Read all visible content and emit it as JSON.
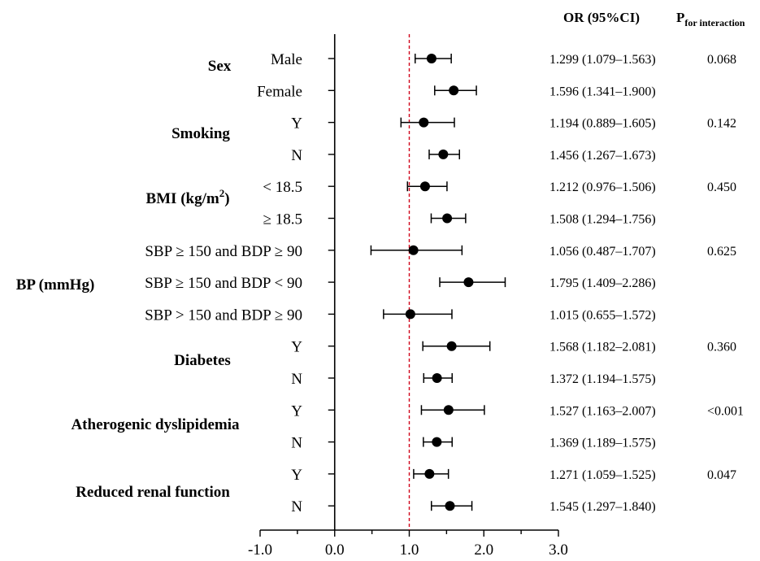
{
  "header": {
    "or_title": "OR (95%CI)",
    "p_title_main": "P",
    "p_title_sub": "for interaction"
  },
  "groups": [
    {
      "label": "Sex"
    },
    {
      "label": "Smoking"
    },
    {
      "label": "BMI (kg/m",
      "sup": "2",
      "suffix": ")"
    },
    {
      "label": "BP (mmHg)"
    },
    {
      "label": "Diabetes"
    },
    {
      "label": "Atherogenic dyslipidemia"
    },
    {
      "label": "Reduced renal function"
    }
  ],
  "chart_data": {
    "type": "scatter",
    "subtype": "forest_plot",
    "xlim": [
      -1.0,
      3.0
    ],
    "x_ticks": [
      "-1.0",
      "0.0",
      "1.0",
      "2.0",
      "3.0"
    ],
    "reference_line": {
      "x": 1.0,
      "style": "dashed",
      "color": "#d0021b"
    },
    "rows": [
      {
        "group": "Sex",
        "label": "Male",
        "or": 1.299,
        "lo": 1.079,
        "hi": 1.563,
        "ci_text": "1.299 (1.079–1.563)",
        "p": "0.068"
      },
      {
        "group": "Sex",
        "label": "Female",
        "or": 1.596,
        "lo": 1.341,
        "hi": 1.9,
        "ci_text": "1.596 (1.341–1.900)",
        "p": ""
      },
      {
        "group": "Smoking",
        "label": "Y",
        "or": 1.194,
        "lo": 0.889,
        "hi": 1.605,
        "ci_text": "1.194 (0.889–1.605)",
        "p": "0.142"
      },
      {
        "group": "Smoking",
        "label": "N",
        "or": 1.456,
        "lo": 1.267,
        "hi": 1.673,
        "ci_text": "1.456 (1.267–1.673)",
        "p": ""
      },
      {
        "group": "BMI (kg/m2)",
        "label": "< 18.5",
        "or": 1.212,
        "lo": 0.976,
        "hi": 1.506,
        "ci_text": "1.212 (0.976–1.506)",
        "p": "0.450"
      },
      {
        "group": "BMI (kg/m2)",
        "label": "≥ 18.5",
        "or": 1.508,
        "lo": 1.294,
        "hi": 1.756,
        "ci_text": "1.508 (1.294–1.756)",
        "p": ""
      },
      {
        "group": "BP (mmHg)",
        "label": "SBP ≥ 150 and BDP ≥ 90",
        "or": 1.056,
        "lo": 0.487,
        "hi": 1.707,
        "ci_text": "1.056 (0.487–1.707)",
        "p": "0.625"
      },
      {
        "group": "BP (mmHg)",
        "label": "SBP ≥ 150 and BDP < 90",
        "or": 1.795,
        "lo": 1.409,
        "hi": 2.286,
        "ci_text": "1.795 (1.409–2.286)",
        "p": ""
      },
      {
        "group": "BP (mmHg)",
        "label": "SBP > 150 and BDP ≥ 90",
        "or": 1.015,
        "lo": 0.655,
        "hi": 1.572,
        "ci_text": "1.015 (0.655–1.572)",
        "p": ""
      },
      {
        "group": "Diabetes",
        "label": "Y",
        "or": 1.568,
        "lo": 1.182,
        "hi": 2.081,
        "ci_text": "1.568 (1.182–2.081)",
        "p": "0.360"
      },
      {
        "group": "Diabetes",
        "label": "N",
        "or": 1.372,
        "lo": 1.194,
        "hi": 1.575,
        "ci_text": "1.372 (1.194–1.575)",
        "p": ""
      },
      {
        "group": "Atherogenic dyslipidemia",
        "label": "Y",
        "or": 1.527,
        "lo": 1.163,
        "hi": 2.007,
        "ci_text": "1.527 (1.163–2.007)",
        "p": "<0.001"
      },
      {
        "group": "Atherogenic dyslipidemia",
        "label": "N",
        "or": 1.369,
        "lo": 1.189,
        "hi": 1.575,
        "ci_text": "1.369 (1.189–1.575)",
        "p": ""
      },
      {
        "group": "Reduced renal function",
        "label": "Y",
        "or": 1.271,
        "lo": 1.059,
        "hi": 1.525,
        "ci_text": "1.271 (1.059–1.525)",
        "p": "0.047"
      },
      {
        "group": "Reduced renal function",
        "label": "N",
        "or": 1.545,
        "lo": 1.297,
        "hi": 1.84,
        "ci_text": "1.545 (1.297–1.840)",
        "p": ""
      }
    ]
  }
}
